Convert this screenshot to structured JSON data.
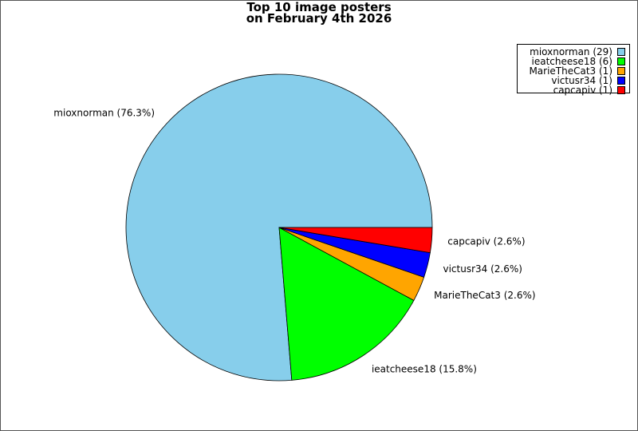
{
  "chart_data": {
    "type": "pie",
    "title_lines": [
      "Top 10 image posters",
      "on February 4th 2026"
    ],
    "legend_placement": "top-right",
    "slices": [
      {
        "name": "mioxnorman",
        "count": 29,
        "percent": "76.3%",
        "color": "#87ceeb"
      },
      {
        "name": "ieatcheese18",
        "count": 6,
        "percent": "15.8%",
        "color": "#00ff00"
      },
      {
        "name": "MarieTheCat3",
        "count": 1,
        "percent": "2.6%",
        "color": "#ffa500"
      },
      {
        "name": "victusr34",
        "count": 1,
        "percent": "2.6%",
        "color": "#0000ff"
      },
      {
        "name": "capcapiv",
        "count": 1,
        "percent": "2.6%",
        "color": "#ff0000"
      }
    ],
    "legend_entries": [
      "mioxnorman (29)",
      "ieatcheese18 (6)",
      "MarieTheCat3 (1)",
      "victusr34 (1)",
      "capcapiv (1)"
    ],
    "slice_labels": [
      "mioxnorman (76.3%)",
      "ieatcheese18 (15.8%)",
      "MarieTheCat3 (2.6%)",
      "victusr34 (2.6%)",
      "capcapiv (2.6%)"
    ]
  }
}
